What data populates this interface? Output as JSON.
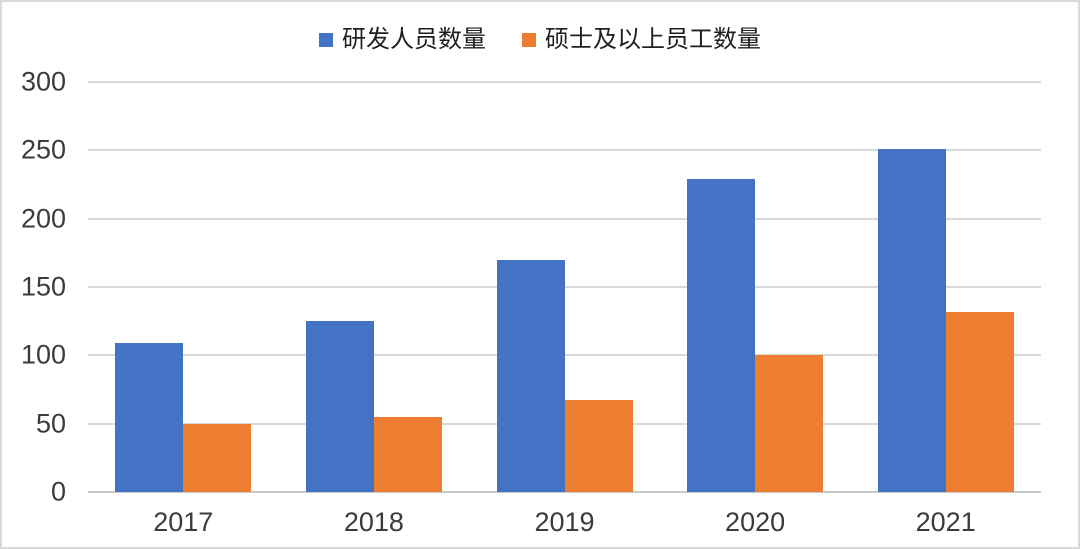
{
  "chart_data": {
    "type": "bar",
    "title": "",
    "categories": [
      "2017",
      "2018",
      "2019",
      "2020",
      "2021"
    ],
    "series": [
      {
        "name": "研发人员数量",
        "color": "#4472C4",
        "values": [
          109,
          125,
          170,
          229,
          251
        ]
      },
      {
        "name": "硕士及以上员工数量",
        "color": "#ED7D31",
        "values": [
          50,
          55,
          67,
          100,
          132
        ]
      }
    ],
    "xlabel": "",
    "ylabel": "",
    "ylim": [
      0,
      300
    ],
    "yticks": [
      0,
      50,
      100,
      150,
      200,
      250,
      300
    ],
    "grid": "horizontal",
    "legend_position": "top-center"
  },
  "colors": {
    "gridline": "#D9D9D9",
    "baseline": "#C9C9C9",
    "tick_text": "#3B3B3B",
    "legend_text": "#1F1F1F",
    "background": "#FFFFFF",
    "frame_border": "#D9D9D9"
  }
}
